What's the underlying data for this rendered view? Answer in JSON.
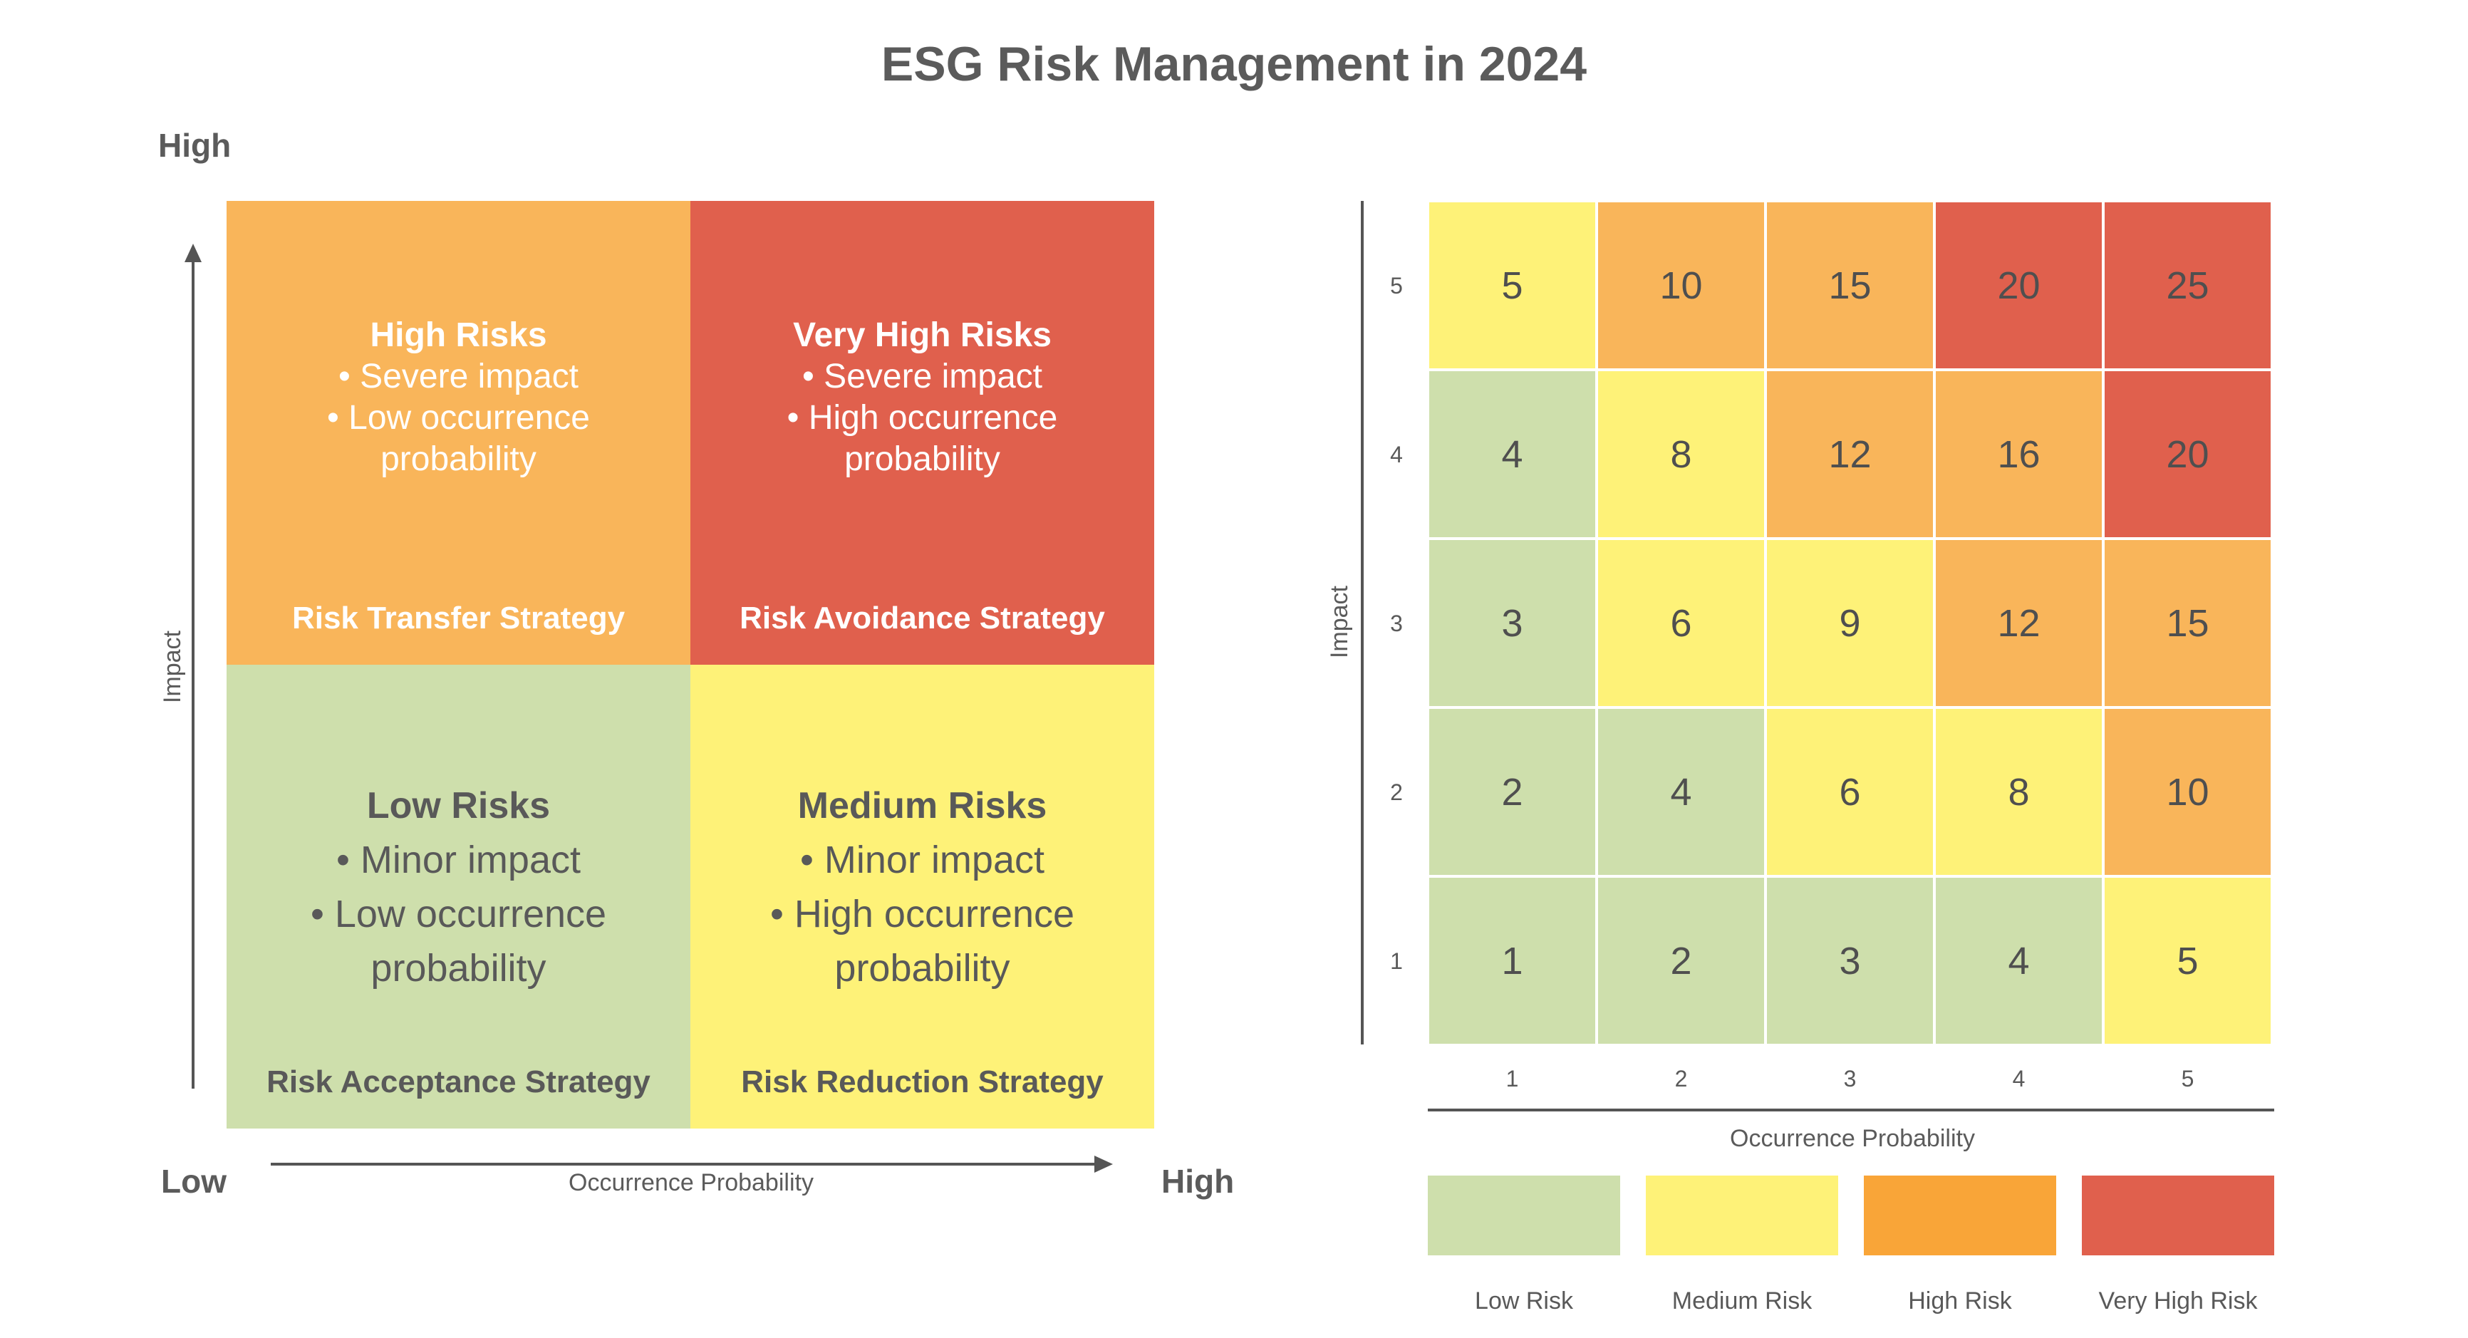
{
  "title": "ESG Risk Management in 2024",
  "left_matrix": {
    "y_high": "High",
    "y_axis_label": "Impact",
    "x_low": "Low",
    "x_high": "High",
    "x_axis_label": "Occurrence Probability",
    "quadrants": [
      {
        "id": "high",
        "title": "High Risks",
        "lines": [
          "• Severe impact",
          "• Low occurrence",
          "probability"
        ],
        "strategy": "Risk Transfer Strategy",
        "color": "#F9B55A"
      },
      {
        "id": "very-high",
        "title": "Very High Risks",
        "lines": [
          "• Severe impact",
          "• High occurrence",
          "probability"
        ],
        "strategy": "Risk Avoidance Strategy",
        "color": "#E0604D"
      },
      {
        "id": "low",
        "title": "Low Risks",
        "lines": [
          "• Minor impact",
          "• Low occurrence",
          "probability"
        ],
        "strategy": "Risk Acceptance Strategy",
        "color": "#CEDFAC"
      },
      {
        "id": "medium",
        "title": "Medium Risks",
        "lines": [
          "• Minor impact",
          "• High occurrence",
          "probability"
        ],
        "strategy": "Risk Reduction Strategy",
        "color": "#FEF278"
      }
    ]
  },
  "heatmap": {
    "y_axis_label": "Impact",
    "x_axis_label": "Occurrence Probability",
    "x_ticks": [
      "1",
      "2",
      "3",
      "4",
      "5"
    ],
    "y_ticks": [
      "5",
      "4",
      "3",
      "2",
      "1"
    ],
    "rows": [
      [
        5,
        10,
        15,
        20,
        25
      ],
      [
        4,
        8,
        12,
        16,
        20
      ],
      [
        3,
        6,
        9,
        12,
        15
      ],
      [
        2,
        4,
        6,
        8,
        10
      ],
      [
        1,
        2,
        3,
        4,
        5
      ]
    ],
    "levels": [
      [
        "medium",
        "high",
        "high",
        "very-high",
        "very-high"
      ],
      [
        "low",
        "medium",
        "high",
        "high",
        "very-high"
      ],
      [
        "low",
        "medium",
        "medium",
        "high",
        "high"
      ],
      [
        "low",
        "low",
        "medium",
        "medium",
        "high"
      ],
      [
        "low",
        "low",
        "low",
        "low",
        "medium"
      ]
    ],
    "level_colors": {
      "low": "#CEDFAC",
      "medium": "#FEF278",
      "high": "#F9B55A",
      "very-high": "#E0604D"
    }
  },
  "legend": [
    {
      "label": "Low Risk",
      "color": "#CEDFAC"
    },
    {
      "label": "Medium Risk",
      "color": "#FEF278"
    },
    {
      "label": "High Risk",
      "color": "#F9A538"
    },
    {
      "label": "Very High Risk",
      "color": "#E0604D"
    }
  ]
}
